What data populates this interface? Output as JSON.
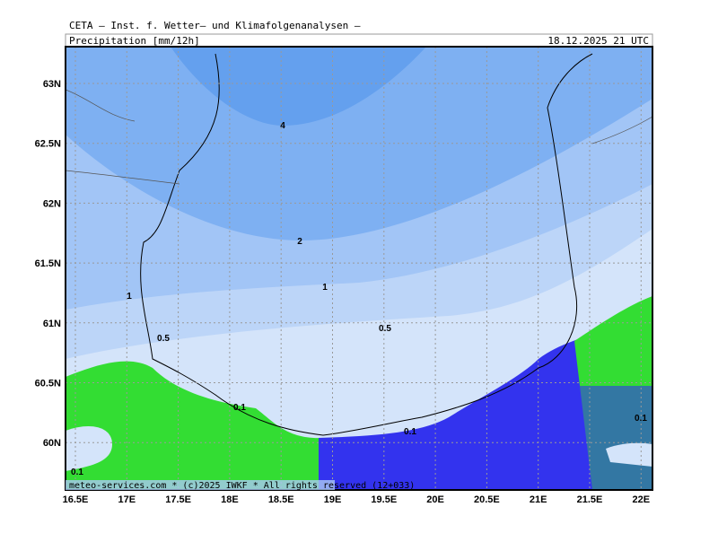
{
  "header": {
    "title": "CETA — Inst. f. Wetter— und Klimafolgenanalysen —",
    "subtitle": "Precipitation [mm/12h]",
    "date": "18.12.2025 21 UTC"
  },
  "map": {
    "lat_labels": [
      "63N",
      "62.5N",
      "62N",
      "61.5N",
      "61N",
      "60.5N",
      "60N"
    ],
    "lon_labels": [
      "16.5E",
      "17E",
      "17.5E",
      "18E",
      "18.5E",
      "19E",
      "19.5E",
      "20E",
      "20.5E",
      "21E",
      "21.5E",
      "22E"
    ],
    "contour_labels": [
      "4",
      "2",
      "1",
      "1",
      "0.5",
      "0.5",
      "0.1",
      "0.1",
      "0.1",
      "0.1"
    ]
  },
  "footer": "meteo-services.com * (c)2025 IWKF * All rights reserved (12+033)"
}
